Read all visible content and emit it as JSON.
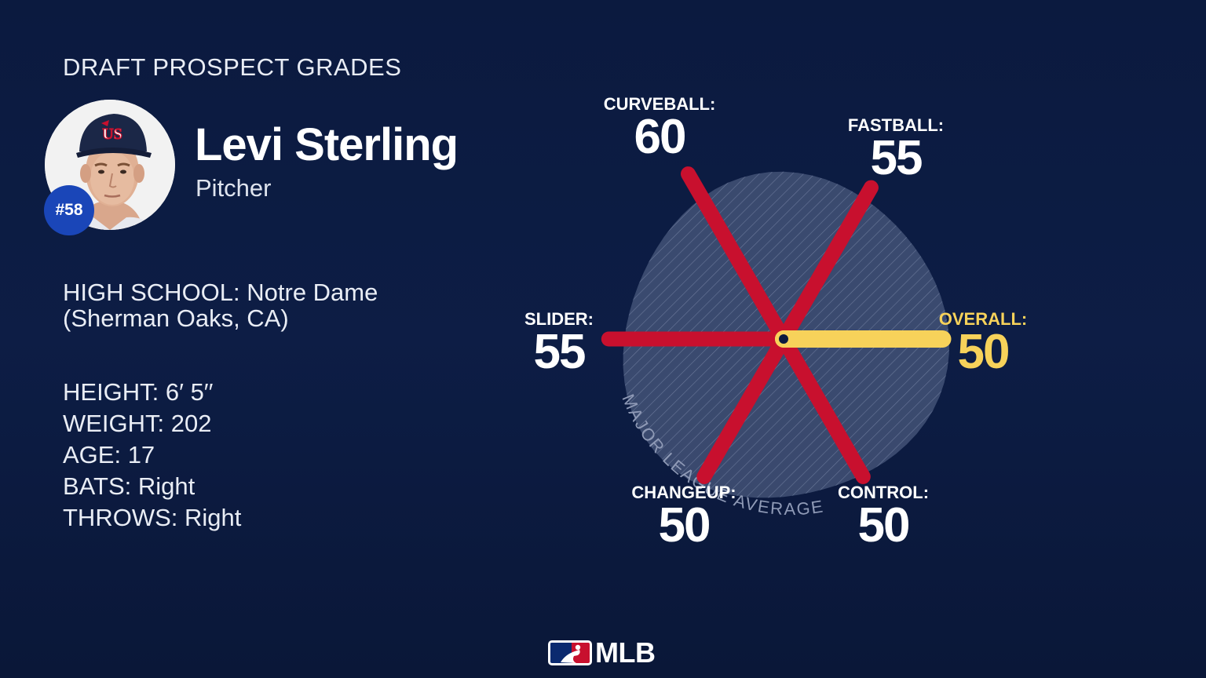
{
  "header": {
    "title": "DRAFT PROSPECT GRADES"
  },
  "player": {
    "name": "Levi Sterling",
    "position": "Pitcher",
    "jersey": "#58",
    "cap_logo_text": "US"
  },
  "bio": {
    "school_line1": "HIGH SCHOOL: Notre Dame",
    "school_line2": "(Sherman Oaks, CA)",
    "height": "HEIGHT: 6′ 5′′",
    "weight": "WEIGHT: 202",
    "age": "AGE: 17",
    "bats": "BATS: Right",
    "throws": "THROWS: Right"
  },
  "colors": {
    "background": "#0b1a3f",
    "pitch_spoke": "#c8102e",
    "overall_spoke": "#f7d25a",
    "average_zone": "#4a5a7e",
    "label_white": "#ffffff"
  },
  "chart_data": {
    "type": "radar",
    "title": "",
    "scale_note": "MAJOR LEAGUE AVERAGE",
    "average_value": 50,
    "axes": [
      {
        "label": "CURVEBALL:",
        "value": 60,
        "angle_deg": -120,
        "highlight": false
      },
      {
        "label": "FASTBALL:",
        "value": 55,
        "angle_deg": -60,
        "highlight": false
      },
      {
        "label": "OVERALL:",
        "value": 50,
        "angle_deg": 0,
        "highlight": true
      },
      {
        "label": "CONTROL:",
        "value": 50,
        "angle_deg": 60,
        "highlight": false
      },
      {
        "label": "CHANGEUP:",
        "value": 50,
        "angle_deg": 120,
        "highlight": false
      },
      {
        "label": "SLIDER:",
        "value": 55,
        "angle_deg": 180,
        "highlight": false
      }
    ]
  },
  "footer": {
    "logo_text": "MLB"
  }
}
